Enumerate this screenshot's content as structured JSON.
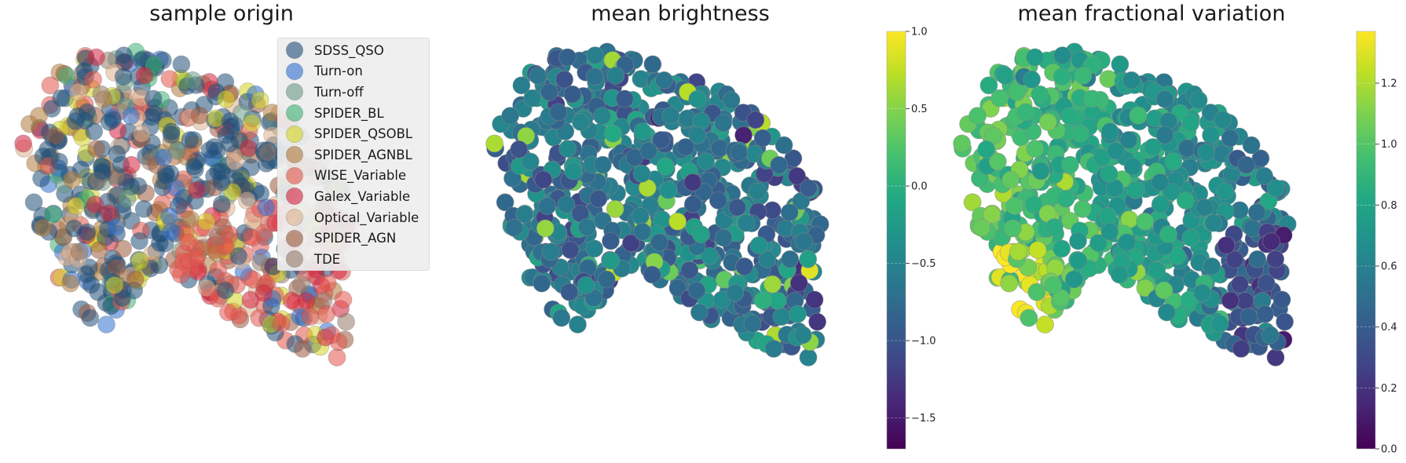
{
  "chart_data": [
    {
      "type": "scatter",
      "title": "sample origin",
      "legend_position": "top-right",
      "legend": [
        {
          "name": "SDSS_QSO",
          "color": "#1f4e79"
        },
        {
          "name": "Turn-on",
          "color": "#2f6fd0"
        },
        {
          "name": "Turn-off",
          "color": "#6a9a86"
        },
        {
          "name": "SPIDER_BL",
          "color": "#3bb273"
        },
        {
          "name": "SPIDER_QSOBL",
          "color": "#d4d421"
        },
        {
          "name": "SPIDER_AGNBL",
          "color": "#b07a38"
        },
        {
          "name": "WISE_Variable",
          "color": "#e4544b"
        },
        {
          "name": "Galex_Variable",
          "color": "#d6203e"
        },
        {
          "name": "Optical_Variable",
          "color": "#deb08e"
        },
        {
          "name": "SPIDER_AGN",
          "color": "#9c5a3c"
        },
        {
          "name": "TDE",
          "color": "#947a6a"
        }
      ],
      "axes_visible": false
    },
    {
      "type": "scatter",
      "title": "mean brightness",
      "colormap": "viridis",
      "colorbar": {
        "min": -1.7,
        "max": 1.0,
        "ticks": [
          "1.0",
          "0.5",
          "0.0",
          "−0.5",
          "−1.0",
          "−1.5"
        ]
      },
      "axes_visible": false
    },
    {
      "type": "scatter",
      "title": "mean fractional variation",
      "colormap": "viridis",
      "colorbar": {
        "min": 0.0,
        "max": 1.37,
        "ticks": [
          "1.2",
          "1.0",
          "0.8",
          "0.6",
          "0.4",
          "0.2",
          "0.0"
        ]
      },
      "axes_visible": false
    }
  ]
}
